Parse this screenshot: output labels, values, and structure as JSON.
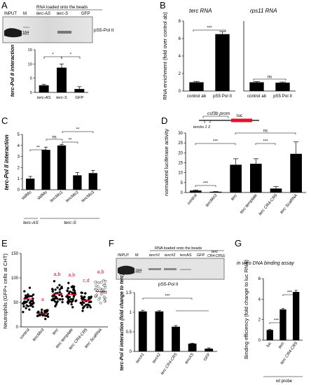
{
  "panels": {
    "A": {
      "letter": "A",
      "header": "RNA loaded onto the beads",
      "lanes": [
        "INPUT",
        "M",
        "terc-AS",
        "terc-S",
        "GFP"
      ],
      "marker": "184",
      "blot_label": "pS5-Pol II",
      "sig": [
        "*",
        "*"
      ]
    },
    "B": {
      "letter": "B",
      "title1": "terc RNA",
      "title2": "rps11 RNA",
      "sig1": "***",
      "sig2": "ns"
    },
    "C": {
      "letter": "C",
      "sig": [
        "**",
        "ns",
        "**",
        "**"
      ],
      "group_AS": "terc-AS",
      "group_S": "terc-S"
    },
    "D": {
      "letter": "D",
      "construct": {
        "prom": "csf3b prom",
        "luc": "luc",
        "sites": "tercbs 1  2"
      },
      "sig": [
        "***",
        "***",
        "***",
        "ns"
      ]
    },
    "E": {
      "letter": "E",
      "sig": [
        "a",
        "a",
        "a,b",
        "a,b",
        "c,d",
        "a,b"
      ]
    },
    "F": {
      "letter": "F",
      "header": "RNA loaded onto the beads",
      "lanes": [
        "INPUT",
        "M",
        "terc#1",
        "terc#2",
        "tercAS",
        "GFP",
        "terc",
        "CR4-CR5Δ"
      ],
      "marker": "184",
      "blot_label": "pS5-Pol II",
      "sig": "***"
    },
    "G": {
      "letter": "G",
      "title": "in vitro DNA binding assay",
      "sig": [
        "***",
        "***"
      ],
      "probe": "wt probe"
    }
  },
  "chart_data": [
    {
      "id": "A",
      "type": "bar",
      "categories": [
        "terc-AS",
        "terc-S",
        "GFP"
      ],
      "values": [
        2.5,
        8.7,
        1.2
      ],
      "errors": [
        0.3,
        1.3,
        0.8
      ],
      "ylabel": "terc-Pol II interaction",
      "ylim": [
        0,
        15
      ],
      "yticks": [
        0,
        5,
        10,
        15
      ]
    },
    {
      "id": "B1",
      "type": "bar",
      "categories": [
        "control ab",
        "pS5 Pol II"
      ],
      "values": [
        1.0,
        6.5
      ],
      "errors": [
        0.1,
        0.3
      ],
      "ylabel": "RNA enrichment (fold over control ab)",
      "ylim": [
        0,
        8
      ],
      "yticks": [
        0,
        2,
        4,
        6,
        8
      ]
    },
    {
      "id": "B2",
      "type": "bar",
      "categories": [
        "control ab",
        "pS5 Pol II"
      ],
      "values": [
        1.0,
        0.95
      ],
      "errors": [
        0.08,
        0.08
      ],
      "ylim": [
        0,
        8
      ]
    },
    {
      "id": "C",
      "type": "bar",
      "categories": [
        "stdMo",
        "stdMo",
        "tercMo1",
        "tercMo2",
        "tercMo3"
      ],
      "values": [
        1.0,
        3.6,
        4.0,
        1.3,
        1.5
      ],
      "errors": [
        0.2,
        0.25,
        0.1,
        0.25,
        0.25
      ],
      "ylabel": "terc-Pol II interaction",
      "ylim": [
        0,
        5
      ],
      "yticks": [
        0,
        1,
        2,
        3,
        4,
        5
      ]
    },
    {
      "id": "D",
      "type": "bar",
      "categories": [
        "control",
        "tercMo3",
        "terc",
        "terc template",
        "terc CR4-CR5",
        "terc ScaRNA"
      ],
      "values": [
        1.0,
        0.4,
        14.0,
        14.5,
        2.0,
        19.5
      ],
      "errors": [
        0.3,
        0.1,
        3.0,
        2.5,
        1.0,
        6.0
      ],
      "ylabel": "normalized luciferase activity",
      "ylim": [
        0,
        30
      ],
      "yticks": [
        0,
        5,
        10,
        15,
        20,
        25,
        30
      ]
    },
    {
      "id": "E",
      "type": "scatter",
      "categories": [
        "control",
        "tercMo3",
        "terc",
        "terc template",
        "terc CR4-CR5",
        "terc ScaRNA"
      ],
      "values": [
        57,
        27,
        67,
        66,
        54,
        72
      ],
      "ylabel": "Neutrophils (GFP+ cells at CHT)",
      "ylim": [
        0,
        150
      ],
      "yticks": [
        0,
        50,
        100,
        150
      ]
    },
    {
      "id": "F",
      "type": "bar",
      "categories": [
        "terc#1",
        "terc#2",
        "terc CR4-CR5",
        "tercAS",
        "GFP"
      ],
      "values": [
        1.02,
        1.02,
        0.63,
        0.2,
        0.07
      ],
      "errors": [
        0.03,
        0.02,
        0.03,
        0.01,
        0.02
      ],
      "ylabel": "terc-Pol II interaction (fold change to terc)",
      "ylim": [
        0,
        1.5
      ],
      "yticks": [
        0.0,
        0.5,
        1.0,
        1.5
      ]
    },
    {
      "id": "G",
      "type": "bar",
      "categories": [
        "luc",
        "terc",
        "terc CR4-CR5"
      ],
      "values": [
        1.0,
        3.0,
        4.7
      ],
      "errors": [
        0.05,
        0.1,
        0.15
      ],
      "ylabel": "Binding efficiency (fold change to luc RNA)",
      "ylim": [
        0,
        6
      ],
      "yticks": [
        0,
        2,
        4,
        6
      ]
    }
  ]
}
